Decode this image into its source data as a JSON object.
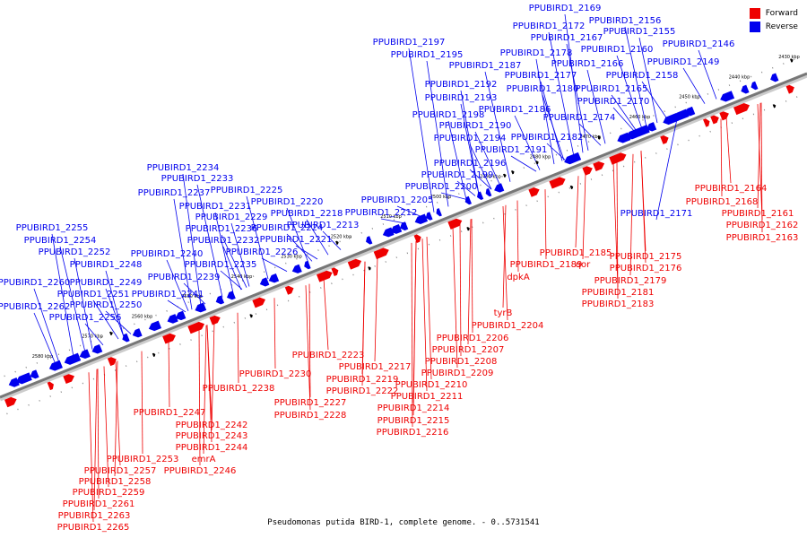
{
  "caption": "Pseudomonas putida BIRD-1, complete genome. - 0..5731541",
  "legend": [
    {
      "label": "Forward",
      "color": "#ee0000"
    },
    {
      "label": "Reverse",
      "color": "#0000ee"
    }
  ],
  "colors": {
    "forward": "#ee0000",
    "reverse": "#0000ee",
    "backbone": "#777777"
  },
  "ticks": [
    "2430 kbp",
    "2440 kbp",
    "2450 kbp",
    "2460 kbp",
    "2470 kbp",
    "2480 kbp",
    "2490 kbp",
    "2500 kbp",
    "2510 kbp",
    "2520 kbp",
    "2530 kbp",
    "2540 kbp",
    "2550 kbp",
    "2560 kbp",
    "2570 kbp",
    "2580 kbp"
  ],
  "reverse_labels": [
    "PPUBIRD1_2169",
    "PPUBIRD1_2156",
    "PPUBIRD1_2172",
    "PPUBIRD1_2155",
    "PPUBIRD1_2167",
    "PPUBIRD1_2197",
    "PPUBIRD1_2146",
    "PPUBIRD1_2195",
    "PPUBIRD1_2160",
    "PPUBIRD1_2178",
    "PPUBIRD1_2149",
    "PPUBIRD1_2187",
    "PPUBIRD1_2166",
    "PPUBIRD1_2177",
    "PPUBIRD1_2158",
    "PPUBIRD1_2192",
    "PPUBIRD1_2180",
    "PPUBIRD1_2165",
    "PPUBIRD1_2193",
    "PPUBIRD1_2170",
    "PPUBIRD1_2186",
    "PPUBIRD1_2198",
    "PPUBIRD1_2174",
    "PPUBIRD1_2190",
    "PPUBIRD1_2182",
    "PPUBIRD1_2194",
    "PPUBIRD1_2191",
    "PPUBIRD1_2234",
    "PPUBIRD1_2196",
    "PPUBIRD1_2233",
    "PPUBIRD1_2199",
    "PPUBIRD1_2225",
    "PPUBIRD1_2200",
    "PPUBIRD1_2237",
    "PPUBIRD1_2220",
    "PPUBIRD1_2205",
    "PPUBIRD1_2231",
    "PPUBIRD1_2218",
    "PPUBIRD1_2212",
    "PPUBIRD1_2229",
    "PPUBIRD1_2171",
    "PPUBIRD1_2224",
    "PPUBIRD1_2213",
    "PPUBIRD1_2255",
    "PPUBIRD1_2236",
    "PPUBIRD1_2232",
    "PPUBIRD1_2221",
    "PPUBIRD1_2254",
    "PPUBIRD1_2252",
    "PPUBIRD1_2240",
    "PPUBIRD1_2226",
    "PPUBIRD1_2248",
    "PPUBIRD1_2235",
    "PPUBIRD1_2260",
    "PPUBIRD1_2249",
    "PPUBIRD1_2239",
    "PPUBIRD1_2251",
    "PPUBIRD1_2241",
    "PPUBIRD1_2262",
    "PPUBIRD1_2250",
    "PPUBIRD1_2256"
  ],
  "forward_labels": [
    "PPUBIRD1_2164",
    "PPUBIRD1_2168",
    "PPUBIRD1_2161",
    "PPUBIRD1_2162",
    "PPUBIRD1_2163",
    "PPUBIRD1_2185",
    "PPUBIRD1_2175",
    "PPUBIRD1_2189",
    "qor",
    "PPUBIRD1_2176",
    "dpkA",
    "PPUBIRD1_2179",
    "PPUBIRD1_2181",
    "PPUBIRD1_2183",
    "tyrB",
    "PPUBIRD1_2204",
    "PPUBIRD1_2206",
    "PPUBIRD1_2207",
    "PPUBIRD1_2223",
    "PPUBIRD1_2208",
    "PPUBIRD1_2217",
    "PPUBIRD1_2209",
    "PPUBIRD1_2230",
    "PPUBIRD1_2219",
    "PPUBIRD1_2210",
    "PPUBIRD1_2238",
    "PPUBIRD1_2222",
    "PPUBIRD1_2211",
    "PPUBIRD1_2227",
    "PPUBIRD1_2214",
    "PPUBIRD1_2228",
    "PPUBIRD1_2247",
    "PPUBIRD1_2215",
    "PPUBIRD1_2242",
    "PPUBIRD1_2216",
    "PPUBIRD1_2243",
    "PPUBIRD1_2244",
    "PPUBIRD1_2253",
    "emrA",
    "PPUBIRD1_2257",
    "PPUBIRD1_2246",
    "PPUBIRD1_2258",
    "PPUBIRD1_2259",
    "PPUBIRD1_2261",
    "PPUBIRD1_2263",
    "PPUBIRD1_2265"
  ]
}
